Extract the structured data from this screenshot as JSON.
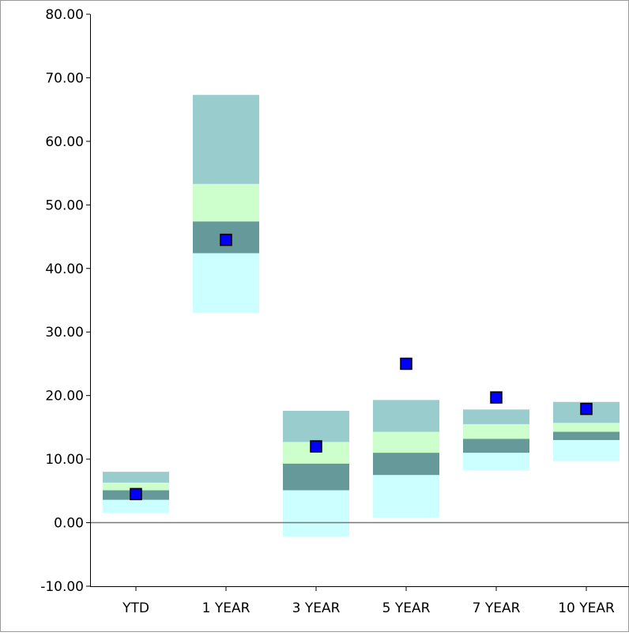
{
  "chart_data": {
    "type": "bar",
    "title": "",
    "xlabel": "",
    "ylabel": "",
    "ylim": [
      -10,
      80
    ],
    "yticks": [
      -10,
      0,
      10,
      20,
      30,
      40,
      50,
      60,
      70,
      80
    ],
    "ytick_labels": [
      "-10.00",
      "0.00",
      "10.00",
      "20.00",
      "30.00",
      "40.00",
      "50.00",
      "60.00",
      "70.00",
      "80.00"
    ],
    "categories": [
      "YTD",
      "1 YEAR",
      "3 YEAR",
      "5 YEAR",
      "7 YEAR",
      "10 YEAR"
    ],
    "grid": false,
    "legend": "none",
    "band_colors": {
      "top": "#99CCCC",
      "upper_mid": "#CCFFCC",
      "lower_mid": "#669999",
      "bottom": "#CCFFFF"
    },
    "marker_color": "#0000FF",
    "bands": [
      {
        "category": "YTD",
        "bottom": 1.5,
        "q1": 3.6,
        "median": 5.1,
        "q3": 6.3,
        "top": 8.0
      },
      {
        "category": "1 YEAR",
        "bottom": 33.0,
        "q1": 42.4,
        "median": 47.4,
        "q3": 53.3,
        "top": 67.3
      },
      {
        "category": "3 YEAR",
        "bottom": -2.2,
        "q1": 5.1,
        "median": 9.3,
        "q3": 12.7,
        "top": 17.6
      },
      {
        "category": "5 YEAR",
        "bottom": 0.8,
        "q1": 7.5,
        "median": 11.0,
        "q3": 14.3,
        "top": 19.3
      },
      {
        "category": "7 YEAR",
        "bottom": 8.2,
        "q1": 11.0,
        "median": 13.2,
        "q3": 15.5,
        "top": 17.8
      },
      {
        "category": "10 YEAR",
        "bottom": 9.7,
        "q1": 13.0,
        "median": 14.3,
        "q3": 15.7,
        "top": 19.0
      }
    ],
    "markers": [
      {
        "category": "YTD",
        "value": 4.5
      },
      {
        "category": "1 YEAR",
        "value": 44.5
      },
      {
        "category": "3 YEAR",
        "value": 12.0
      },
      {
        "category": "5 YEAR",
        "value": 25.0
      },
      {
        "category": "7 YEAR",
        "value": 19.7
      },
      {
        "category": "10 YEAR",
        "value": 17.9
      }
    ]
  }
}
